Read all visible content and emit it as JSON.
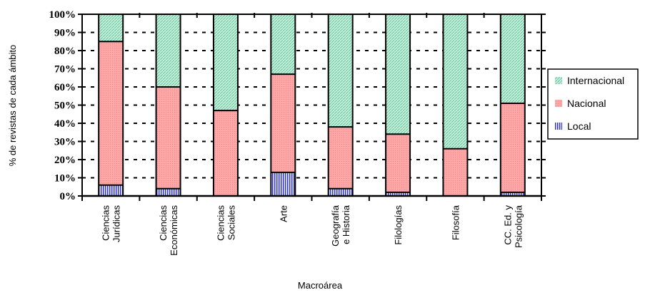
{
  "chart_data": {
    "type": "bar",
    "stacked": true,
    "percent": true,
    "categories": [
      [
        "Ciencias",
        "Jurídicas"
      ],
      [
        "Ciencias",
        "Económicas"
      ],
      [
        "Ciencias",
        "Sociales"
      ],
      [
        "Arte"
      ],
      [
        "Geografía",
        "e Historia"
      ],
      [
        "Filologías"
      ],
      [
        "Filosofía"
      ],
      [
        "CC. Ed. y",
        "Psicología"
      ]
    ],
    "series": [
      {
        "name": "Local",
        "values": [
          6,
          4,
          0,
          13,
          4,
          2,
          0,
          2
        ]
      },
      {
        "name": "Nacional",
        "values": [
          79,
          56,
          47,
          54,
          34,
          32,
          26,
          49
        ]
      },
      {
        "name": "Internacional",
        "values": [
          15,
          40,
          53,
          33,
          62,
          66,
          74,
          49
        ]
      }
    ],
    "colors": {
      "Local": "#2f34c8",
      "Nacional": "#ff9f9f",
      "Internacional": "#a6e3c8"
    },
    "yticks": [
      "0%",
      "10%",
      "20%",
      "30%",
      "40%",
      "50%",
      "60%",
      "70%",
      "80%",
      "90%",
      "100%"
    ],
    "ylim": [
      0,
      100
    ],
    "xlabel": "Macroárea",
    "ylabel": "% de revistas de cada ámbito",
    "legend": {
      "placement": "right",
      "order": [
        "Internacional",
        "Nacional",
        "Local"
      ]
    },
    "grid": "dashed-horizontal"
  }
}
